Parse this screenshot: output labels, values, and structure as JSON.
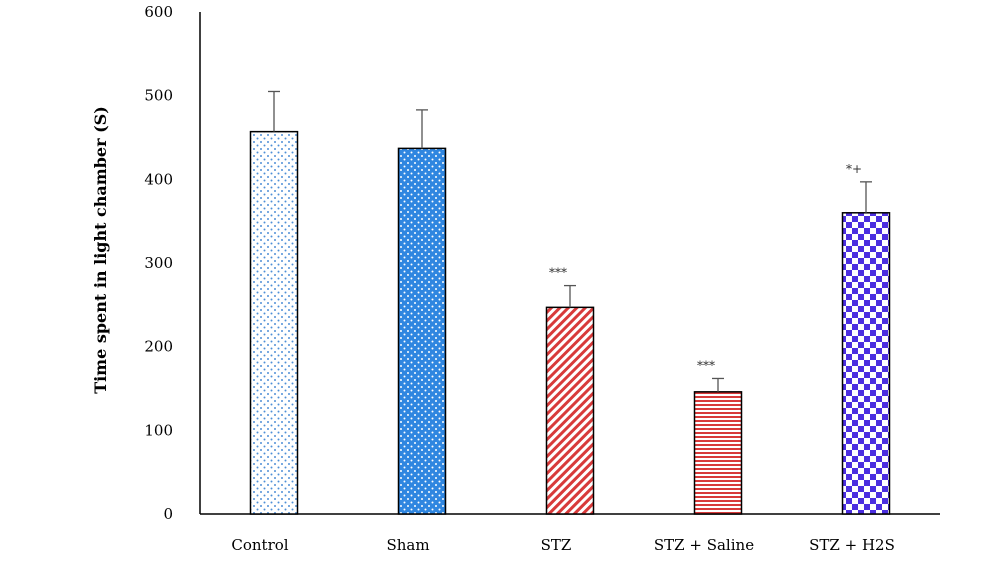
{
  "chart_data": {
    "type": "bar",
    "title": "",
    "xlabel": "",
    "ylabel": "Time spent in light chamber (S)",
    "ylim": [
      0,
      600
    ],
    "yticks": [
      0,
      100,
      200,
      300,
      400,
      500,
      600
    ],
    "grid": false,
    "legend": "none",
    "categories": [
      "Control",
      "Sham",
      "STZ",
      "STZ + Saline",
      "STZ + H2S"
    ],
    "values": [
      457,
      437,
      247,
      146,
      360
    ],
    "errors": [
      48,
      46,
      26,
      16,
      37
    ],
    "annotations": [
      "",
      "",
      "***",
      "***",
      "*+"
    ],
    "bar_styles": [
      {
        "pattern": "dots",
        "fill": "#ffffff",
        "mark": "#4f8fd6"
      },
      {
        "pattern": "dots",
        "fill": "#2f86e0",
        "mark": "#ffffff"
      },
      {
        "pattern": "diagonal",
        "fill": "#ffffff",
        "mark": "#d83a3a"
      },
      {
        "pattern": "horizontal",
        "fill": "#ffffff",
        "mark": "#d83a3a"
      },
      {
        "pattern": "checker",
        "fill": "#ffffff",
        "mark": "#4b2ee0"
      }
    ]
  }
}
